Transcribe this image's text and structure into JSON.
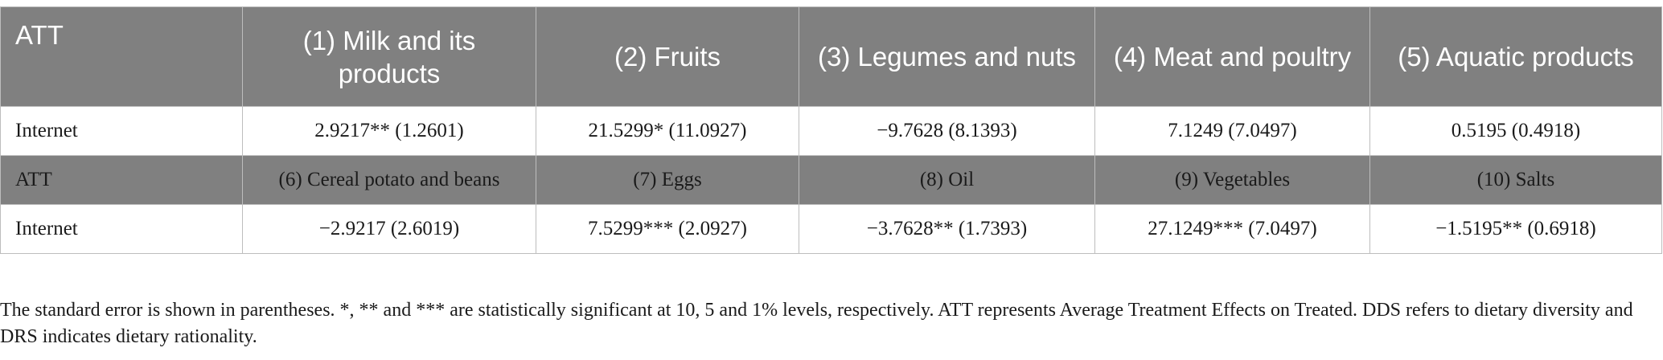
{
  "table": {
    "header_row_1": [
      "ATT",
      "(1) Milk and its products",
      "(2) Fruits",
      "(3) Legumes and nuts",
      "(4) Meat and poultry",
      "(5) Aquatic products"
    ],
    "data_row_1": [
      "Internet",
      "2.9217** (1.2601)",
      "21.5299* (11.0927)",
      "−9.7628 (8.1393)",
      "7.1249 (7.0497)",
      "0.5195 (0.4918)"
    ],
    "header_row_2": [
      "ATT",
      "(6) Cereal potato and beans",
      "(7) Eggs",
      "(8) Oil",
      "(9) Vegetables",
      "(10) Salts"
    ],
    "data_row_2": [
      "Internet",
      "−2.9217 (2.6019)",
      "7.5299*** (2.0927)",
      "−3.7628** (1.7393)",
      "27.1249*** (7.0497)",
      "−1.5195** (0.6918)"
    ]
  },
  "footnote": "The standard error is shown in parentheses. *, ** and *** are statistically significant at 10, 5 and 1% levels, respectively. ATT represents Average Treatment Effects on Treated. DDS refers to dietary diversity and DRS indicates dietary rationality."
}
